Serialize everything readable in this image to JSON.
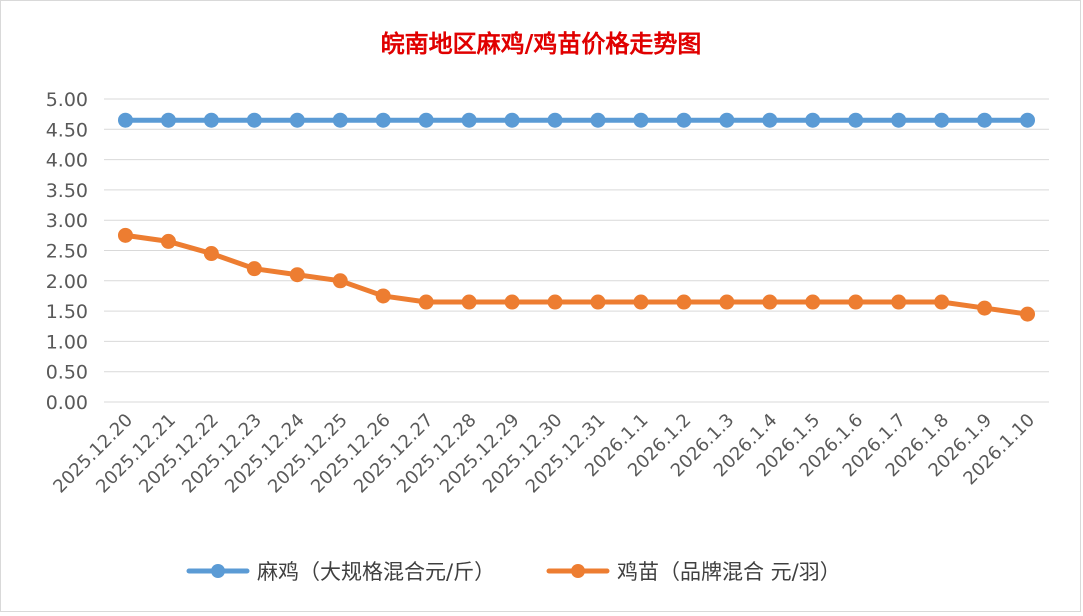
{
  "chart_data": {
    "type": "line",
    "title": "皖南地区麻鸡/鸡苗价格走势图",
    "title_color": "#e00000",
    "categories": [
      "2025.12.20",
      "2025.12.21",
      "2025.12.22",
      "2025.12.23",
      "2025.12.24",
      "2025.12.25",
      "2025.12.26",
      "2025.12.27",
      "2025.12.28",
      "2025.12.29",
      "2025.12.30",
      "2025.12.31",
      "2026.1.1",
      "2026.1.2",
      "2026.1.3",
      "2026.1.4",
      "2026.1.5",
      "2026.1.6",
      "2026.1.7",
      "2026.1.8",
      "2026.1.9",
      "2026.1.10"
    ],
    "y_ticks": [
      "0.00",
      "0.50",
      "1.00",
      "1.50",
      "2.00",
      "2.50",
      "3.00",
      "3.50",
      "4.00",
      "4.50",
      "5.00"
    ],
    "ylim": [
      0,
      5
    ],
    "grid": true,
    "legend_position": "bottom",
    "series": [
      {
        "name": "麻鸡（大规格混合元/斤）",
        "color": "#5b9bd5",
        "values": [
          4.65,
          4.65,
          4.65,
          4.65,
          4.65,
          4.65,
          4.65,
          4.65,
          4.65,
          4.65,
          4.65,
          4.65,
          4.65,
          4.65,
          4.65,
          4.65,
          4.65,
          4.65,
          4.65,
          4.65,
          4.65,
          4.65
        ]
      },
      {
        "name": "鸡苗（品牌混合 元/羽）",
        "color": "#ed7d31",
        "values": [
          2.75,
          2.65,
          2.45,
          2.2,
          2.1,
          2.0,
          1.75,
          1.65,
          1.65,
          1.65,
          1.65,
          1.65,
          1.65,
          1.65,
          1.65,
          1.65,
          1.65,
          1.65,
          1.65,
          1.65,
          1.55,
          1.45
        ]
      }
    ]
  }
}
